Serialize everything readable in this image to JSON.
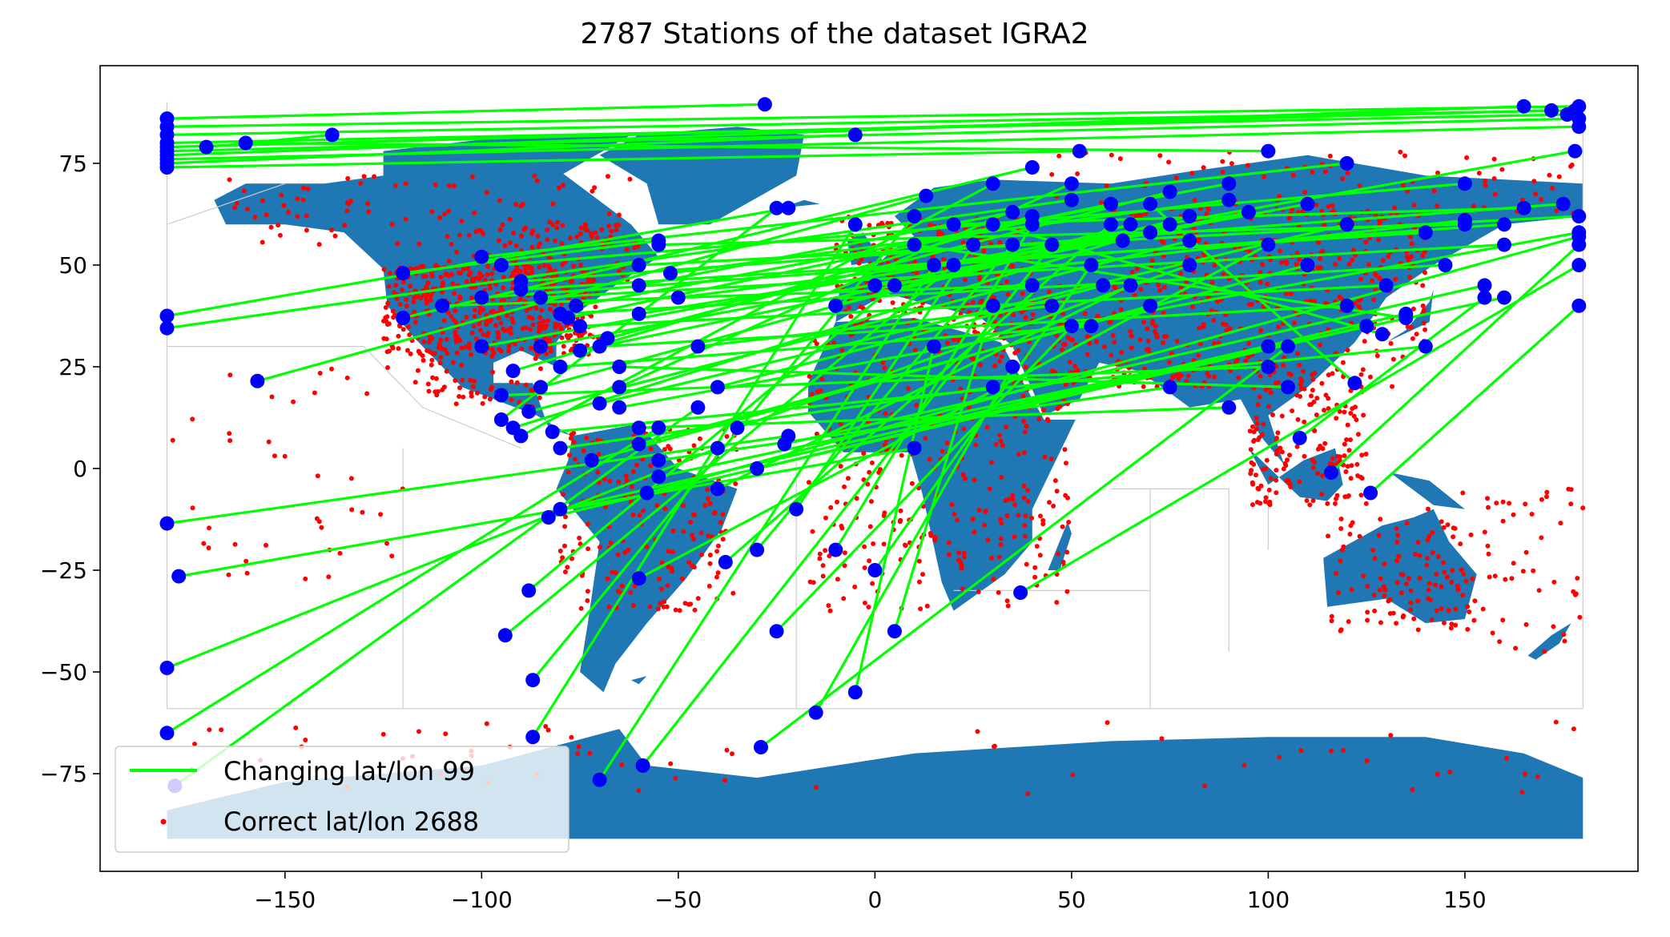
{
  "chart_data": {
    "type": "scatter",
    "title": "2787 Stations of the dataset IGRA2",
    "xlabel": "",
    "ylabel": "",
    "xlim": [
      -197,
      194
    ],
    "ylim": [
      -99,
      99
    ],
    "xticks": [
      -150,
      -100,
      -50,
      0,
      50,
      100,
      150
    ],
    "yticks": [
      -75,
      -50,
      -25,
      0,
      25,
      50,
      75
    ],
    "xtick_labels": [
      "−150",
      "−100",
      "−50",
      "0",
      "50",
      "100",
      "150"
    ],
    "ytick_labels": [
      "−75",
      "−50",
      "−25",
      "0",
      "25",
      "50",
      "75"
    ],
    "grid": false,
    "legend_position": "lower-left",
    "background_map": "world land polygons",
    "colors": {
      "land": "#1f77b4",
      "boundaries": "#cccccc",
      "changing_line": "#00ff00",
      "changing_marker": "#0000ff",
      "correct_marker": "#ff0000"
    },
    "series": [
      {
        "name": "Changing lat/lon 99",
        "kind": "segments",
        "segments": [
          [
            [
              -180,
              86
            ],
            [
              -28,
              89.5
            ]
          ],
          [
            [
              -180,
              84
            ],
            [
              179,
              89
            ]
          ],
          [
            [
              -180,
              82
            ],
            [
              178,
              88
            ]
          ],
          [
            [
              -180,
              80
            ],
            [
              176,
              87
            ]
          ],
          [
            [
              -180,
              78
            ],
            [
              179,
              86
            ]
          ],
          [
            [
              -180,
              76
            ],
            [
              179,
              84
            ]
          ],
          [
            [
              -180,
              75
            ],
            [
              -5,
              82
            ]
          ],
          [
            [
              -180,
              74
            ],
            [
              52,
              78
            ]
          ],
          [
            [
              -180,
              77
            ],
            [
              165,
              89
            ]
          ],
          [
            [
              -180,
              79
            ],
            [
              172,
              88
            ]
          ],
          [
            [
              -170,
              79
            ],
            [
              -138,
              82
            ]
          ],
          [
            [
              -160,
              80
            ],
            [
              100,
              78
            ]
          ],
          [
            [
              -180,
              37.5
            ],
            [
              -22,
              64
            ]
          ],
          [
            [
              -180,
              34.5
            ],
            [
              50,
              66
            ]
          ],
          [
            [
              -157,
              21.5
            ],
            [
              13,
              67
            ]
          ],
          [
            [
              -120,
              48
            ],
            [
              -55,
              56
            ]
          ],
          [
            [
              -92,
              24
            ],
            [
              40,
              62
            ]
          ],
          [
            [
              -95,
              12
            ],
            [
              -25,
              64
            ]
          ],
          [
            [
              -92,
              10
            ],
            [
              75,
              60
            ]
          ],
          [
            [
              -90,
              8
            ],
            [
              30,
              70
            ]
          ],
          [
            [
              -88,
              14
            ],
            [
              80,
              56
            ]
          ],
          [
            [
              -85,
              20
            ],
            [
              65,
              60
            ]
          ],
          [
            [
              -78,
              37
            ],
            [
              60,
              65
            ]
          ],
          [
            [
              -75,
              29
            ],
            [
              95,
              63
            ]
          ],
          [
            [
              -70,
              16
            ],
            [
              120,
              60
            ]
          ],
          [
            [
              -65,
              15
            ],
            [
              179,
              58
            ]
          ],
          [
            [
              -60,
              38
            ],
            [
              70,
              58
            ]
          ],
          [
            [
              -60,
              50
            ],
            [
              179,
              62
            ]
          ],
          [
            [
              -55,
              55
            ],
            [
              150,
              60
            ]
          ],
          [
            [
              -52,
              48
            ],
            [
              90,
              66
            ]
          ],
          [
            [
              -180,
              -13.5
            ],
            [
              -22,
              8
            ]
          ],
          [
            [
              -177,
              -26.5
            ],
            [
              10,
              5
            ]
          ],
          [
            [
              -180,
              -49
            ],
            [
              -40,
              5
            ]
          ],
          [
            [
              -180,
              -65
            ],
            [
              -55,
              10
            ]
          ],
          [
            [
              -178,
              -78
            ],
            [
              -45,
              15
            ]
          ],
          [
            [
              -88,
              -30
            ],
            [
              5,
              45
            ]
          ],
          [
            [
              -94,
              -41
            ],
            [
              20,
              50
            ]
          ],
          [
            [
              -87,
              -52
            ],
            [
              10,
              62
            ]
          ],
          [
            [
              -87,
              -66
            ],
            [
              -5,
              60
            ]
          ],
          [
            [
              -70,
              -76.5
            ],
            [
              15,
              50
            ]
          ],
          [
            [
              -59,
              -73
            ],
            [
              45,
              55
            ]
          ],
          [
            [
              -29,
              -68.5
            ],
            [
              105,
              30
            ]
          ],
          [
            [
              37,
              -30.5
            ],
            [
              179,
              50
            ]
          ],
          [
            [
              -38,
              -23
            ],
            [
              60,
              60
            ]
          ],
          [
            [
              -60,
              -27
            ],
            [
              100,
              55
            ]
          ],
          [
            [
              -58,
              -6
            ],
            [
              179,
              57
            ]
          ],
          [
            [
              -60,
              6
            ],
            [
              110,
              50
            ]
          ],
          [
            [
              -23,
              6
            ],
            [
              155,
              45
            ]
          ],
          [
            [
              -83,
              -12
            ],
            [
              125,
              35
            ]
          ],
          [
            [
              -80,
              -10
            ],
            [
              135,
              38
            ]
          ],
          [
            [
              -55,
              -2
            ],
            [
              160,
              42
            ]
          ],
          [
            [
              108,
              7.5
            ],
            [
              155,
              42
            ]
          ],
          [
            [
              116,
              -1
            ],
            [
              179,
              55
            ]
          ],
          [
            [
              126,
              -6
            ],
            [
              179,
              40
            ]
          ],
          [
            [
              122,
              21
            ],
            [
              70,
              65
            ]
          ],
          [
            [
              129,
              33
            ],
            [
              30,
              60
            ]
          ],
          [
            [
              135,
              37
            ],
            [
              10,
              55
            ]
          ],
          [
            [
              150,
              61
            ],
            [
              0,
              45
            ]
          ],
          [
            [
              165,
              64
            ],
            [
              20,
              60
            ]
          ],
          [
            [
              80,
              62
            ],
            [
              -10,
              40
            ]
          ],
          [
            [
              -100,
              42
            ],
            [
              160,
              60
            ]
          ],
          [
            [
              -110,
              40
            ],
            [
              40,
              45
            ]
          ],
          [
            [
              -80,
              25
            ],
            [
              55,
              35
            ]
          ],
          [
            [
              -95,
              18
            ],
            [
              100,
              25
            ]
          ],
          [
            [
              -82,
              9
            ],
            [
              140,
              30
            ]
          ],
          [
            [
              -80,
              5
            ],
            [
              30,
              20
            ]
          ],
          [
            [
              -72,
              2
            ],
            [
              70,
              40
            ]
          ],
          [
            [
              -65,
              20
            ],
            [
              50,
              70
            ]
          ],
          [
            [
              -68,
              32
            ],
            [
              75,
              68
            ]
          ],
          [
            [
              -76,
              40
            ],
            [
              90,
              70
            ]
          ],
          [
            [
              -85,
              30
            ],
            [
              110,
              65
            ]
          ],
          [
            [
              -90,
              44
            ],
            [
              140,
              58
            ]
          ],
          [
            [
              -100,
              30
            ],
            [
              178,
              78
            ]
          ],
          [
            [
              -120,
              37
            ],
            [
              40,
              74
            ]
          ],
          [
            [
              -60,
              45
            ],
            [
              35,
              63
            ]
          ],
          [
            [
              -50,
              42
            ],
            [
              63,
              56
            ]
          ],
          [
            [
              -45,
              30
            ],
            [
              45,
              40
            ]
          ],
          [
            [
              -40,
              20
            ],
            [
              58,
              45
            ]
          ],
          [
            [
              -35,
              10
            ],
            [
              80,
              50
            ]
          ],
          [
            [
              -30,
              0
            ],
            [
              100,
              30
            ]
          ],
          [
            [
              -20,
              -10
            ],
            [
              25,
              55
            ]
          ],
          [
            [
              -10,
              -20
            ],
            [
              40,
              60
            ]
          ],
          [
            [
              0,
              -25
            ],
            [
              55,
              50
            ]
          ],
          [
            [
              5,
              -40
            ],
            [
              30,
              40
            ]
          ],
          [
            [
              -5,
              -55
            ],
            [
              15,
              30
            ]
          ],
          [
            [
              -15,
              -60
            ],
            [
              35,
              25
            ]
          ],
          [
            [
              -25,
              -40
            ],
            [
              50,
              35
            ]
          ],
          [
            [
              -30,
              -20
            ],
            [
              35,
              55
            ]
          ],
          [
            [
              -40,
              -5
            ],
            [
              65,
              45
            ]
          ],
          [
            [
              -55,
              2
            ],
            [
              75,
              20
            ]
          ],
          [
            [
              -60,
              10
            ],
            [
              90,
              15
            ]
          ],
          [
            [
              -65,
              25
            ],
            [
              105,
              20
            ]
          ],
          [
            [
              -70,
              30
            ],
            [
              120,
              40
            ]
          ],
          [
            [
              -75,
              35
            ],
            [
              130,
              45
            ]
          ],
          [
            [
              -80,
              38
            ],
            [
              145,
              50
            ]
          ],
          [
            [
              -85,
              42
            ],
            [
              160,
              55
            ]
          ],
          [
            [
              -90,
              46
            ],
            [
              175,
              65
            ]
          ],
          [
            [
              -95,
              50
            ],
            [
              150,
              70
            ]
          ],
          [
            [
              -100,
              52
            ],
            [
              120,
              75
            ]
          ]
        ]
      },
      {
        "name": "Correct lat/lon 2688",
        "kind": "points",
        "seed": 2688
      }
    ]
  }
}
